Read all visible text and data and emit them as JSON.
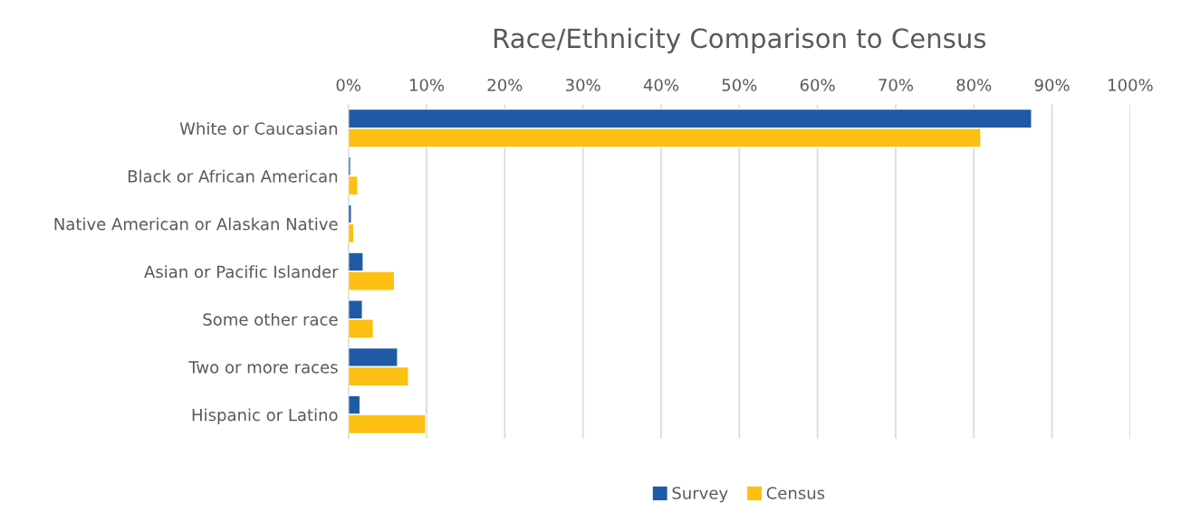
{
  "chart_data": {
    "type": "bar",
    "orientation": "horizontal",
    "title": "Race/Ethnicity Comparison to Census",
    "categories": [
      "White or Caucasian",
      "Black or African American",
      "Native American or Alaskan Native",
      "Asian or Pacific Islander",
      "Some other race",
      "Two or more races",
      "Hispanic or Latino"
    ],
    "series": [
      {
        "name": "Survey",
        "color": "#1f5aa6",
        "values": [
          87.4,
          0.3,
          0.4,
          1.9,
          1.8,
          6.3,
          1.5
        ]
      },
      {
        "name": "Census",
        "color": "#fcbf12",
        "values": [
          80.9,
          1.2,
          0.7,
          5.9,
          3.2,
          7.7,
          9.9
        ]
      }
    ],
    "xlim": [
      0,
      100
    ],
    "xticks": [
      {
        "value": 0,
        "label": "0%"
      },
      {
        "value": 10,
        "label": "10%"
      },
      {
        "value": 20,
        "label": "20%"
      },
      {
        "value": 30,
        "label": "30%"
      },
      {
        "value": 40,
        "label": "40%"
      },
      {
        "value": 50,
        "label": "50%"
      },
      {
        "value": 60,
        "label": "60%"
      },
      {
        "value": 70,
        "label": "70%"
      },
      {
        "value": 80,
        "label": "80%"
      },
      {
        "value": 90,
        "label": "90%"
      },
      {
        "value": 100,
        "label": "100%"
      }
    ],
    "grid": "x",
    "legend": "bottom"
  }
}
